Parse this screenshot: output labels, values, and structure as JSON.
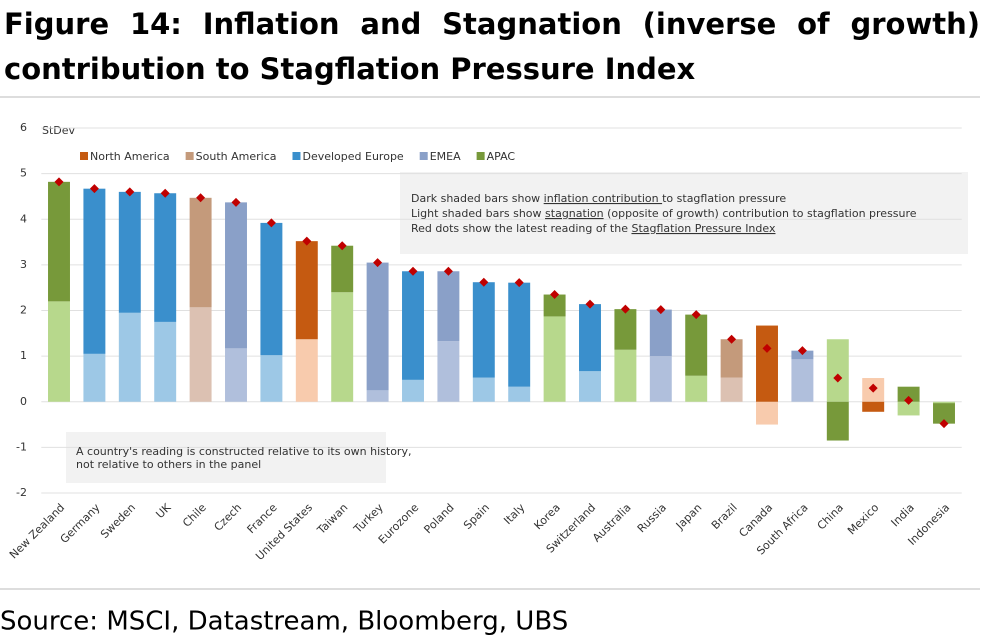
{
  "chart_data": {
    "type": "stacked-bar-dot",
    "title": "Figure 14: Inflation and Stagnation (inverse of growth) contribution to Stagflation Pressure Index",
    "y_label": "StDev",
    "source": "Source: MSCI, Datastream, Bloomberg, UBS",
    "legend": [
      {
        "name": "North America",
        "dark": "#c55a11",
        "light": "#f8cbad"
      },
      {
        "name": "South America",
        "dark": "#c49a7b",
        "light": "#dcc1b2"
      },
      {
        "name": "Developed Europe",
        "dark": "#3a8fcc",
        "light": "#9dc8e6"
      },
      {
        "name": "EMEA",
        "dark": "#8aa0c8",
        "light": "#b0bfdc"
      },
      {
        "name": "APAC",
        "dark": "#77993a",
        "light": "#b7d88c"
      }
    ],
    "categories": [
      "New Zealand",
      "Germany",
      "Sweden",
      "UK",
      "Chile",
      "Czech",
      "France",
      "United States",
      "Taiwan",
      "Turkey",
      "Eurozone",
      "Poland",
      "Spain",
      "Italy",
      "Korea",
      "Switzerland",
      "Australia",
      "Russia",
      "Japan",
      "Brazil",
      "Canada",
      "South Africa",
      "China",
      "Mexico",
      "India",
      "Indonesia"
    ],
    "regions": [
      4,
      2,
      2,
      2,
      1,
      3,
      2,
      0,
      4,
      3,
      2,
      3,
      2,
      2,
      4,
      2,
      4,
      3,
      4,
      1,
      0,
      3,
      4,
      0,
      4,
      4
    ],
    "inflation": [
      2.62,
      3.62,
      2.65,
      2.82,
      2.4,
      3.2,
      2.9,
      2.15,
      1.02,
      2.8,
      2.38,
      1.53,
      2.09,
      2.28,
      0.48,
      1.47,
      0.89,
      1.02,
      1.34,
      0.84,
      1.67,
      0.19,
      -0.85,
      -0.22,
      0.33,
      -0.45
    ],
    "stagnation": [
      2.2,
      1.05,
      1.95,
      1.75,
      2.07,
      1.17,
      1.02,
      1.37,
      2.4,
      0.25,
      0.48,
      1.33,
      0.53,
      0.33,
      1.87,
      0.67,
      1.14,
      1.0,
      0.57,
      0.53,
      -0.5,
      0.93,
      1.37,
      0.52,
      -0.3,
      -0.03
    ],
    "index": [
      4.82,
      4.67,
      4.6,
      4.57,
      4.47,
      4.37,
      3.92,
      3.52,
      3.42,
      3.05,
      2.86,
      2.86,
      2.62,
      2.61,
      2.35,
      2.14,
      2.03,
      2.02,
      1.91,
      1.37,
      1.17,
      1.12,
      0.52,
      0.3,
      0.03,
      -0.48
    ],
    "dot_color": "#c00000",
    "ylim": [
      -2,
      6
    ],
    "yticks": [
      -2,
      -1,
      0,
      1,
      2,
      3,
      4,
      5,
      6
    ],
    "grid": true,
    "note": [
      [
        {
          "text": "Dark shaded bars show "
        },
        {
          "text": "inflation contribution ",
          "underline": true
        },
        {
          "text": "to stagflation pressure"
        }
      ],
      [
        {
          "text": "Light shaded bars show "
        },
        {
          "text": "stagnation",
          "underline": true
        },
        {
          "text": " (opposite of growth) contribution to stagflation pressure"
        }
      ],
      [
        {
          "text": "Red dots show the latest reading of the "
        },
        {
          "text": "Stagflation Pressure Index",
          "underline": true
        }
      ]
    ],
    "note2": [
      "A country's reading is constructed relative to its own history,",
      "not relative to others in the panel"
    ]
  }
}
